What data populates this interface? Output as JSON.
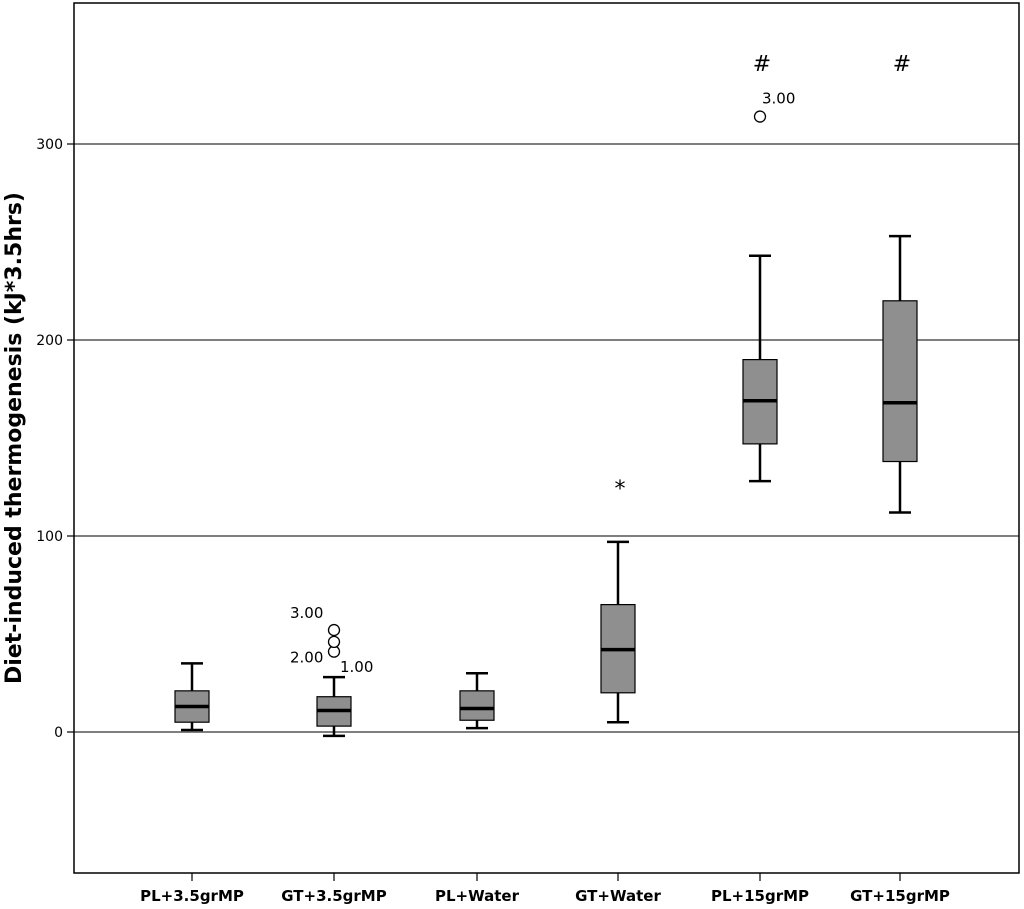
{
  "chart_data": {
    "type": "boxplot",
    "ylabel": "Diet-induced thermogenesis (kJ*3.5hrs)",
    "ylim": [
      -72,
      372
    ],
    "yticks": [
      0,
      100,
      200,
      300
    ],
    "grid": true,
    "categories": [
      "PL+3.5grMP",
      "GT+3.5grMP",
      "PL+Water",
      "GT+Water",
      "PL+15grMP",
      "GT+15grMP"
    ],
    "boxes": [
      {
        "category": "PL+3.5grMP",
        "whisker_low": 1,
        "q1": 5,
        "median": 13,
        "q3": 21,
        "whisker_high": 35,
        "outliers": [],
        "significance": ""
      },
      {
        "category": "GT+3.5grMP",
        "whisker_low": -2,
        "q1": 3,
        "median": 11,
        "q3": 18,
        "whisker_high": 28,
        "outliers": [
          {
            "value": 41,
            "label": "2.00"
          },
          {
            "value": 46,
            "label": "1.00"
          },
          {
            "value": 52,
            "label": "3.00"
          }
        ],
        "significance": ""
      },
      {
        "category": "PL+Water",
        "whisker_low": 2,
        "q1": 6,
        "median": 12,
        "q3": 21,
        "whisker_high": 30,
        "outliers": [],
        "significance": ""
      },
      {
        "category": "GT+Water",
        "whisker_low": 5,
        "q1": 20,
        "median": 42,
        "q3": 65,
        "whisker_high": 97,
        "outliers": [],
        "significance": "*"
      },
      {
        "category": "PL+15grMP",
        "whisker_low": 128,
        "q1": 147,
        "median": 169,
        "q3": 190,
        "whisker_high": 243,
        "outliers": [
          {
            "value": 314,
            "label": "3.00"
          }
        ],
        "significance": "#"
      },
      {
        "category": "GT+15grMP",
        "whisker_low": 112,
        "q1": 138,
        "median": 168,
        "q3": 220,
        "whisker_high": 253,
        "outliers": [],
        "significance": "#"
      }
    ],
    "box_color": "#8f8f8f",
    "line_color": "#000000",
    "grid_color": "#555555"
  }
}
